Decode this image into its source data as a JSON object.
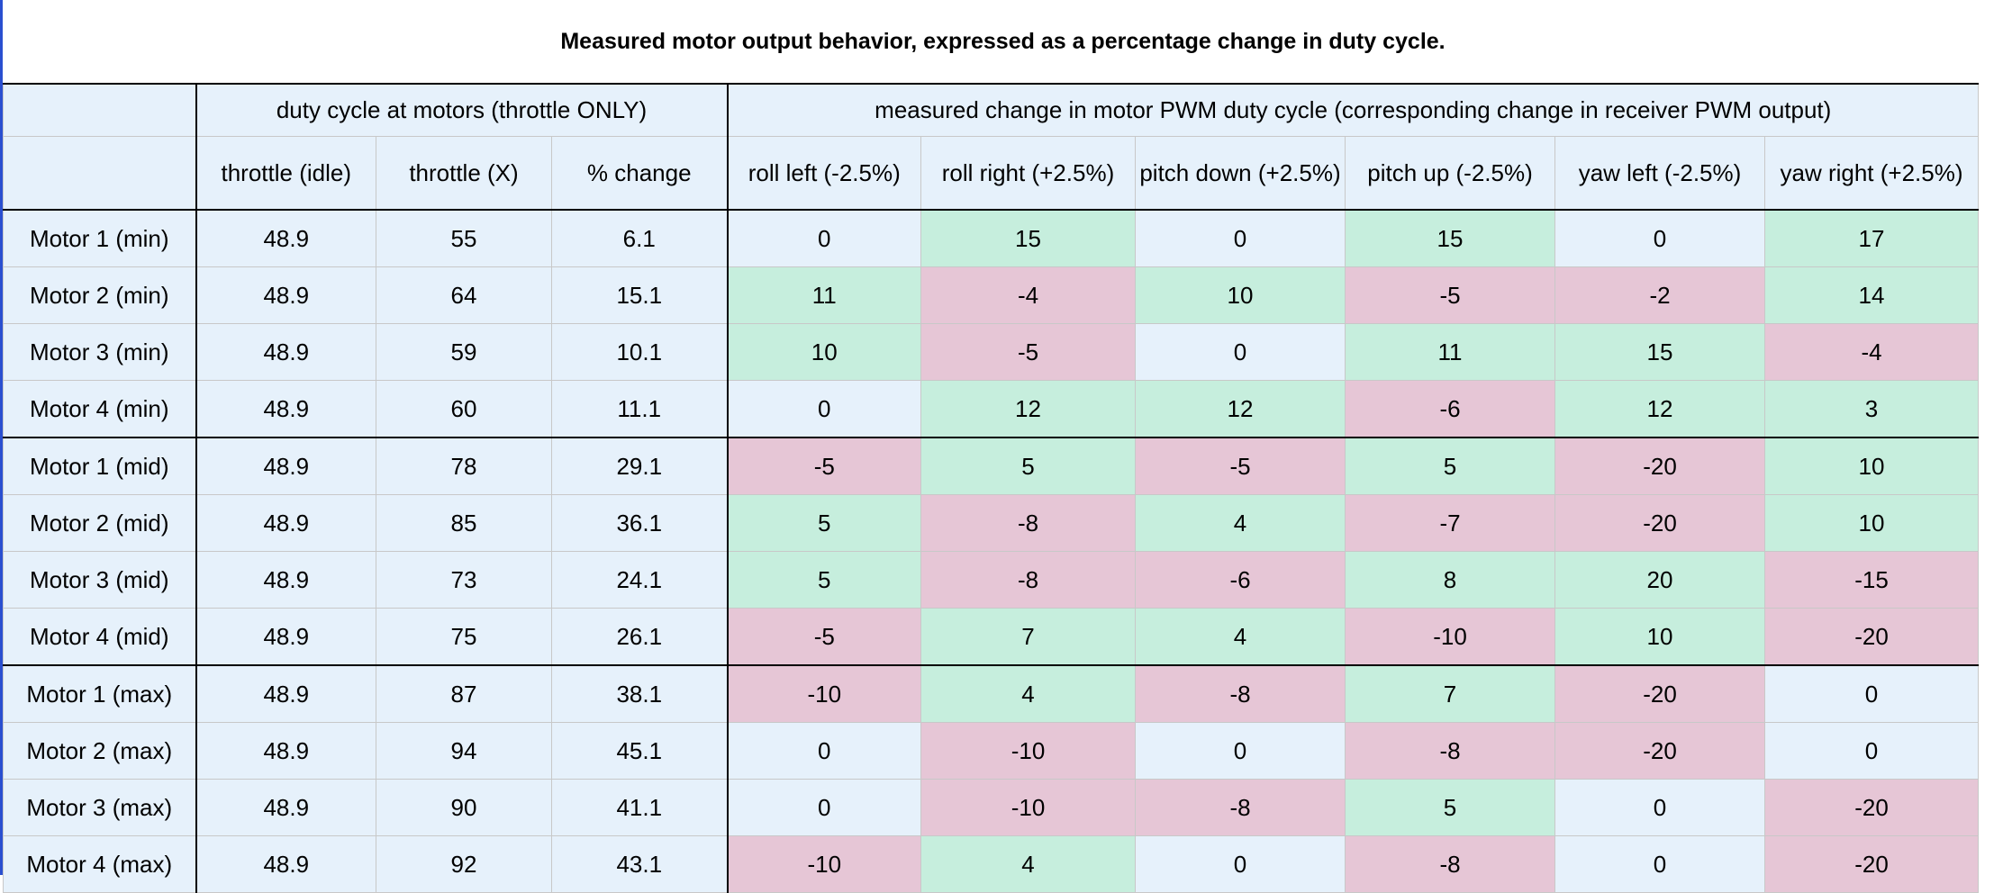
{
  "title": "Measured motor output behavior, expressed as a percentage change in duty cycle.",
  "group_headers": {
    "throttle_group": "duty cycle at motors (throttle ONLY)",
    "change_group": "measured change in motor PWM duty cycle (corresponding change in receiver PWM output)"
  },
  "columns": [
    "throttle (idle)",
    "throttle (X)",
    "% change",
    "roll left (-2.5%)",
    "roll right (+2.5%)",
    "pitch down (+2.5%)",
    "pitch up (-2.5%)",
    "yaw left (-2.5%)",
    "yaw right (+2.5%)"
  ],
  "colors": {
    "positive": "#c6eedd",
    "negative": "#e6c6d6",
    "neutral": "#e6f1fb"
  },
  "rows": [
    {
      "label": "Motor 1 (min)",
      "idle": "48.9",
      "x": "55",
      "pct": "6.1",
      "changes": [
        "0",
        "15",
        "0",
        "15",
        "0",
        "17"
      ]
    },
    {
      "label": "Motor 2 (min)",
      "idle": "48.9",
      "x": "64",
      "pct": "15.1",
      "changes": [
        "11",
        "-4",
        "10",
        "-5",
        "-2",
        "14"
      ]
    },
    {
      "label": "Motor 3 (min)",
      "idle": "48.9",
      "x": "59",
      "pct": "10.1",
      "changes": [
        "10",
        "-5",
        "0",
        "11",
        "15",
        "-4"
      ]
    },
    {
      "label": "Motor 4 (min)",
      "idle": "48.9",
      "x": "60",
      "pct": "11.1",
      "changes": [
        "0",
        "12",
        "12",
        "-6",
        "12",
        "3"
      ]
    },
    {
      "label": "Motor 1 (mid)",
      "idle": "48.9",
      "x": "78",
      "pct": "29.1",
      "changes": [
        "-5",
        "5",
        "-5",
        "5",
        "-20",
        "10"
      ]
    },
    {
      "label": "Motor 2 (mid)",
      "idle": "48.9",
      "x": "85",
      "pct": "36.1",
      "changes": [
        "5",
        "-8",
        "4",
        "-7",
        "-20",
        "10"
      ]
    },
    {
      "label": "Motor 3 (mid)",
      "idle": "48.9",
      "x": "73",
      "pct": "24.1",
      "changes": [
        "5",
        "-8",
        "-6",
        "8",
        "20",
        "-15"
      ]
    },
    {
      "label": "Motor 4 (mid)",
      "idle": "48.9",
      "x": "75",
      "pct": "26.1",
      "changes": [
        "-5",
        "7",
        "4",
        "-10",
        "10",
        "-20"
      ]
    },
    {
      "label": "Motor 1 (max)",
      "idle": "48.9",
      "x": "87",
      "pct": "38.1",
      "changes": [
        "-10",
        "4",
        "-8",
        "7",
        "-20",
        "0"
      ]
    },
    {
      "label": "Motor 2 (max)",
      "idle": "48.9",
      "x": "94",
      "pct": "45.1",
      "changes": [
        "0",
        "-10",
        "0",
        "-8",
        "-20",
        "0"
      ]
    },
    {
      "label": "Motor 3 (max)",
      "idle": "48.9",
      "x": "90",
      "pct": "41.1",
      "changes": [
        "0",
        "-10",
        "-8",
        "5",
        "0",
        "-20"
      ]
    },
    {
      "label": "Motor 4 (max)",
      "idle": "48.9",
      "x": "92",
      "pct": "43.1",
      "changes": [
        "-10",
        "4",
        "0",
        "-8",
        "0",
        "-20"
      ]
    }
  ]
}
